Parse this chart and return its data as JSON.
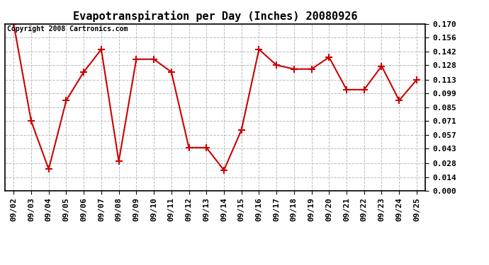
{
  "title": "Evapotranspiration per Day (Inches) 20080926",
  "copyright": "Copyright 2008 Cartronics.com",
  "x_labels": [
    "09/02",
    "09/03",
    "09/04",
    "09/05",
    "09/06",
    "09/07",
    "09/08",
    "09/09",
    "09/10",
    "09/11",
    "09/12",
    "09/13",
    "09/14",
    "09/15",
    "09/16",
    "09/17",
    "09/18",
    "09/19",
    "09/20",
    "09/21",
    "09/22",
    "09/23",
    "09/24",
    "09/25"
  ],
  "y_values": [
    0.17,
    0.071,
    0.022,
    0.092,
    0.121,
    0.144,
    0.03,
    0.134,
    0.134,
    0.121,
    0.044,
    0.044,
    0.021,
    0.062,
    0.144,
    0.128,
    0.124,
    0.124,
    0.136,
    0.103,
    0.103,
    0.127,
    0.092,
    0.113
  ],
  "y_ticks": [
    0.0,
    0.014,
    0.028,
    0.043,
    0.057,
    0.071,
    0.085,
    0.099,
    0.113,
    0.128,
    0.142,
    0.156,
    0.17
  ],
  "ylim": [
    0.0,
    0.17
  ],
  "line_color": "#cc0000",
  "marker": "+",
  "marker_color": "#cc0000",
  "bg_color": "#ffffff",
  "grid_color": "#bbbbbb",
  "title_fontsize": 11,
  "tick_fontsize": 8,
  "copyright_fontsize": 7
}
